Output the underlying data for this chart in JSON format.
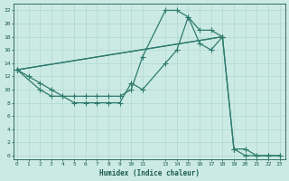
{
  "xlabel": "Humidex (Indice chaleur)",
  "bg_color": "#cceae4",
  "line_color": "#2e7b6e",
  "marker": "+",
  "markersize": 4,
  "linewidth": 0.9,
  "series": [
    {
      "x": [
        0,
        1,
        2,
        3,
        4,
        5,
        6,
        7,
        8,
        9,
        10,
        11,
        13,
        14,
        15,
        16,
        17,
        18
      ],
      "y": [
        13,
        12,
        11,
        10,
        9,
        9,
        9,
        9,
        9,
        9,
        10,
        15,
        22,
        22,
        21,
        19,
        19,
        18
      ]
    },
    {
      "x": [
        0,
        2,
        3,
        4,
        5,
        6,
        7,
        8,
        9,
        10,
        11,
        13,
        14,
        15,
        16,
        17,
        18
      ],
      "y": [
        13,
        10,
        9,
        9,
        8,
        8,
        8,
        8,
        8,
        11,
        10,
        14,
        16,
        21,
        17,
        16,
        18
      ]
    },
    {
      "x": [
        0,
        18,
        19,
        20,
        21,
        22,
        23
      ],
      "y": [
        13,
        18,
        1,
        1,
        0,
        0,
        0
      ]
    },
    {
      "x": [
        0,
        18,
        19,
        20,
        21,
        22,
        23
      ],
      "y": [
        13,
        18,
        1,
        0,
        0,
        0,
        0
      ]
    }
  ],
  "xlim": [
    -0.3,
    23.5
  ],
  "ylim": [
    -0.5,
    23
  ],
  "xticks": [
    0,
    1,
    2,
    3,
    4,
    5,
    6,
    7,
    8,
    9,
    10,
    11,
    13,
    14,
    15,
    16,
    17,
    18,
    19,
    20,
    21,
    22,
    23
  ],
  "yticks": [
    0,
    2,
    4,
    6,
    8,
    10,
    12,
    14,
    16,
    18,
    20,
    22
  ],
  "grid_color": "#b0d8d0",
  "font_color": "#1a5a50",
  "tick_fontsize": 4.5,
  "xlabel_fontsize": 5.5
}
